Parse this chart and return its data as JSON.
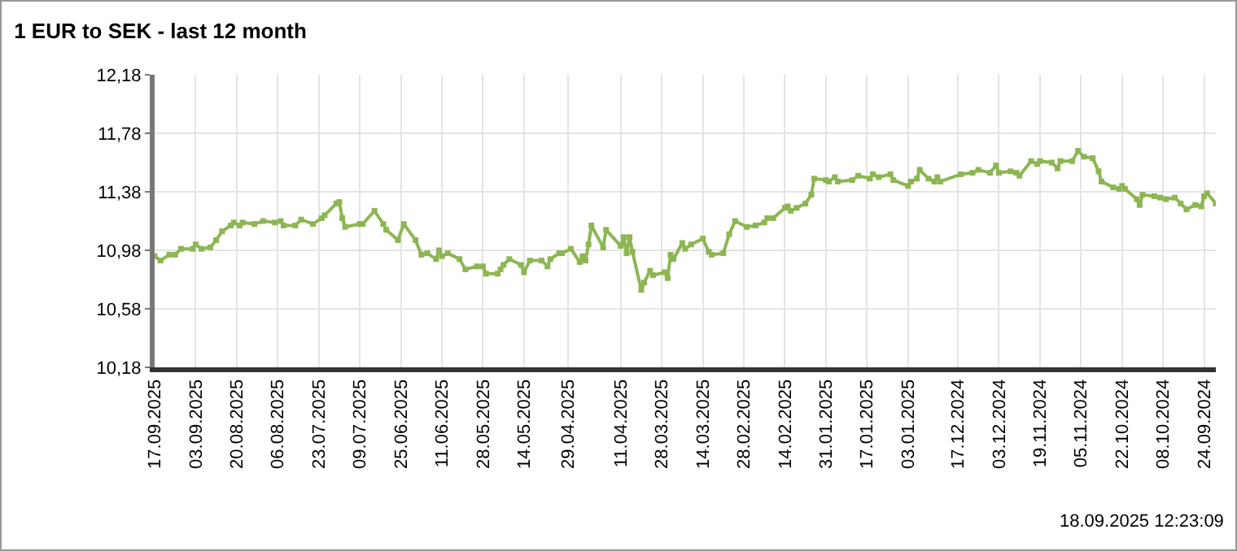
{
  "chart_data": {
    "type": "line",
    "title": "1 EUR to SEK - last 12 month",
    "annotations": [
      "18.09.2025 12:23:09"
    ],
    "x": [
      "2025-09-17",
      "2025-09-15",
      "2025-09-12",
      "2025-09-10",
      "2025-09-08",
      "2025-09-04",
      "2025-09-03",
      "2025-09-01",
      "2025-08-29",
      "2025-08-27",
      "2025-08-25",
      "2025-08-22",
      "2025-08-21",
      "2025-08-19",
      "2025-08-18",
      "2025-08-14",
      "2025-08-11",
      "2025-08-07",
      "2025-08-05",
      "2025-08-04",
      "2025-07-31",
      "2025-07-29",
      "2025-07-25",
      "2025-07-22",
      "2025-07-21",
      "2025-07-17",
      "2025-07-16",
      "2025-07-15",
      "2025-07-14",
      "2025-07-09",
      "2025-07-08",
      "2025-07-04",
      "2025-07-01",
      "2025-06-30",
      "2025-06-26",
      "2025-06-24",
      "2025-06-20",
      "2025-06-18",
      "2025-06-16",
      "2025-06-13",
      "2025-06-12",
      "2025-06-11",
      "2025-06-09",
      "2025-06-05",
      "2025-06-03",
      "2025-05-30",
      "2025-05-28",
      "2025-05-27",
      "2025-05-23",
      "2025-05-22",
      "2025-05-21",
      "2025-05-19",
      "2025-05-15",
      "2025-05-14",
      "2025-05-12",
      "2025-05-08",
      "2025-05-06",
      "2025-05-05",
      "2025-05-02",
      "2025-05-01",
      "2025-04-28",
      "2025-04-25",
      "2025-04-24",
      "2025-04-23",
      "2025-04-22",
      "2025-04-21",
      "2025-04-17",
      "2025-04-16",
      "2025-04-11",
      "2025-04-10",
      "2025-04-09",
      "2025-04-08",
      "2025-04-07",
      "2025-04-04",
      "2025-04-03",
      "2025-04-01",
      "2025-03-31",
      "2025-03-27",
      "2025-03-26",
      "2025-03-25",
      "2025-03-24",
      "2025-03-21",
      "2025-03-20",
      "2025-03-18",
      "2025-03-14",
      "2025-03-12",
      "2025-03-11",
      "2025-03-07",
      "2025-03-05",
      "2025-03-03",
      "2025-02-27",
      "2025-02-24",
      "2025-02-21",
      "2025-02-20",
      "2025-02-18",
      "2025-02-14",
      "2025-02-13",
      "2025-02-12",
      "2025-02-10",
      "2025-02-07",
      "2025-02-05",
      "2025-02-04",
      "2025-01-31",
      "2025-01-30",
      "2025-01-28",
      "2025-01-27",
      "2025-01-22",
      "2025-01-20",
      "2025-01-16",
      "2025-01-15",
      "2025-01-13",
      "2025-01-09",
      "2025-01-08",
      "2025-01-03",
      "2025-01-02",
      "2024-12-31",
      "2024-12-30",
      "2024-12-27",
      "2024-12-25",
      "2024-12-24",
      "2024-12-23",
      "2024-12-16",
      "2024-12-12",
      "2024-12-10",
      "2024-12-06",
      "2024-12-04",
      "2024-12-03",
      "2024-11-29",
      "2024-11-27",
      "2024-11-26",
      "2024-11-22",
      "2024-11-20",
      "2024-11-19",
      "2024-11-15",
      "2024-11-13",
      "2024-11-12",
      "2024-11-08",
      "2024-11-06",
      "2024-11-04",
      "2024-11-01",
      "2024-10-30",
      "2024-10-29",
      "2024-10-25",
      "2024-10-23",
      "2024-10-22",
      "2024-10-21",
      "2024-10-17",
      "2024-10-16",
      "2024-10-15",
      "2024-10-11",
      "2024-10-09",
      "2024-10-07",
      "2024-10-04",
      "2024-10-02",
      "2024-09-30",
      "2024-09-27",
      "2024-09-25",
      "2024-09-24",
      "2024-09-23",
      "2024-09-20"
    ],
    "series": [
      {
        "color": "#8db653",
        "values": [
          10.94,
          10.91,
          10.95,
          10.95,
          10.99,
          10.99,
          11.02,
          10.99,
          11.0,
          11.05,
          11.11,
          11.15,
          11.17,
          11.15,
          11.17,
          11.16,
          11.18,
          11.17,
          11.18,
          11.15,
          11.15,
          11.19,
          11.16,
          11.2,
          11.22,
          11.3,
          11.31,
          11.2,
          11.14,
          11.16,
          11.16,
          11.25,
          11.16,
          11.12,
          11.05,
          11.16,
          11.05,
          10.95,
          10.96,
          10.92,
          10.98,
          10.94,
          10.96,
          10.92,
          10.85,
          10.87,
          10.87,
          10.82,
          10.82,
          10.85,
          10.88,
          10.92,
          10.88,
          10.83,
          10.91,
          10.91,
          10.87,
          10.92,
          10.96,
          10.96,
          10.99,
          10.9,
          10.94,
          10.91,
          11.02,
          11.15,
          11.0,
          11.12,
          11.01,
          11.07,
          10.96,
          11.07,
          10.97,
          10.71,
          10.76,
          10.84,
          10.81,
          10.83,
          10.79,
          10.95,
          10.92,
          11.03,
          10.99,
          11.02,
          11.06,
          10.97,
          10.95,
          10.96,
          11.09,
          11.18,
          11.14,
          11.15,
          11.17,
          11.2,
          11.2,
          11.27,
          11.28,
          11.25,
          11.27,
          11.3,
          11.36,
          11.47,
          11.46,
          11.45,
          11.48,
          11.45,
          11.46,
          11.49,
          11.47,
          11.5,
          11.48,
          11.5,
          11.46,
          11.42,
          11.45,
          11.47,
          11.53,
          11.47,
          11.45,
          11.48,
          11.45,
          11.5,
          11.51,
          11.53,
          11.51,
          11.56,
          11.51,
          11.52,
          11.51,
          11.49,
          11.59,
          11.57,
          11.59,
          11.58,
          11.54,
          11.59,
          11.59,
          11.66,
          11.62,
          11.61,
          11.52,
          11.45,
          11.41,
          11.4,
          11.42,
          11.4,
          11.33,
          11.29,
          11.36,
          11.35,
          11.34,
          11.33,
          11.34,
          11.3,
          11.26,
          11.29,
          11.28,
          11.35,
          11.37,
          11.3
        ]
      }
    ],
    "xlim": [
      "2025-09-17",
      "2024-09-20"
    ],
    "xticks": [
      {
        "value": "2025-09-17",
        "label": "17.09.2025"
      },
      {
        "value": "2025-09-03",
        "label": "03.09.2025"
      },
      {
        "value": "2025-08-20",
        "label": "20.08.2025"
      },
      {
        "value": "2025-08-06",
        "label": "06.08.2025"
      },
      {
        "value": "2025-07-23",
        "label": "23.07.2025"
      },
      {
        "value": "2025-07-09",
        "label": "09.07.2025"
      },
      {
        "value": "2025-06-25",
        "label": "25.06.2025"
      },
      {
        "value": "2025-06-11",
        "label": "11.06.2025"
      },
      {
        "value": "2025-05-28",
        "label": "28.05.2025"
      },
      {
        "value": "2025-05-14",
        "label": "14.05.2025"
      },
      {
        "value": "2025-04-29",
        "label": "29.04.2025"
      },
      {
        "value": "2025-04-11",
        "label": "11.04.2025"
      },
      {
        "value": "2025-03-28",
        "label": "28.03.2025"
      },
      {
        "value": "2025-03-14",
        "label": "14.03.2025"
      },
      {
        "value": "2025-02-28",
        "label": "28.02.2025"
      },
      {
        "value": "2025-02-14",
        "label": "14.02.2025"
      },
      {
        "value": "2025-01-31",
        "label": "31.01.2025"
      },
      {
        "value": "2025-01-17",
        "label": "17.01.2025"
      },
      {
        "value": "2025-01-03",
        "label": "03.01.2025"
      },
      {
        "value": "2024-12-17",
        "label": "17.12.2024"
      },
      {
        "value": "2024-12-03",
        "label": "03.12.2024"
      },
      {
        "value": "2024-11-19",
        "label": "19.11.2024"
      },
      {
        "value": "2024-11-05",
        "label": "05.11.2024"
      },
      {
        "value": "2024-10-22",
        "label": "22.10.2024"
      },
      {
        "value": "2024-10-08",
        "label": "08.10.2024"
      },
      {
        "value": "2024-09-24",
        "label": "24.09.2024"
      }
    ],
    "ylim": [
      10.18,
      12.18
    ],
    "yticks": [
      {
        "value": 10.18,
        "label": "10,18"
      },
      {
        "value": 10.58,
        "label": "10,58"
      },
      {
        "value": 10.98,
        "label": "10,98"
      },
      {
        "value": 11.38,
        "label": "11,38"
      },
      {
        "value": 11.78,
        "label": "11,78"
      },
      {
        "value": 12.18,
        "label": "12,18"
      }
    ],
    "grid": true,
    "marker": "square",
    "line_style": "solid"
  }
}
